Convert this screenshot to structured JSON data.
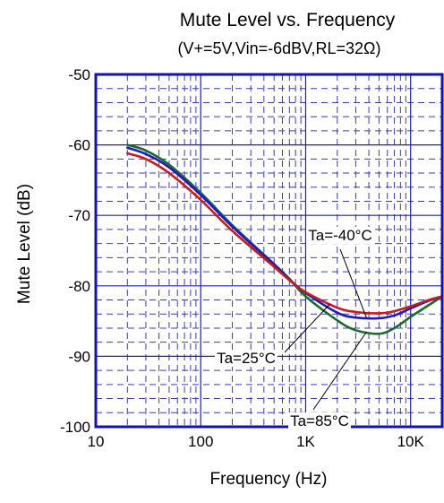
{
  "chart_data": {
    "type": "line",
    "title": "Mute Level vs. Frequency",
    "subtitle": "(V+=5V,Vin=-6dBV,RL=32Ω)",
    "xlabel": "Frequency (Hz)",
    "ylabel": "Mute Level (dB)",
    "x_scale": "log",
    "xlim": [
      10,
      20000
    ],
    "ylim": [
      -100,
      -50
    ],
    "grid": true,
    "x_ticks": [
      {
        "value": 10,
        "label": "10"
      },
      {
        "value": 100,
        "label": "100"
      },
      {
        "value": 1000,
        "label": "1K"
      },
      {
        "value": 10000,
        "label": "10K"
      }
    ],
    "y_ticks": [
      {
        "value": -50,
        "label": "-50"
      },
      {
        "value": -60,
        "label": "-60"
      },
      {
        "value": -70,
        "label": "-70"
      },
      {
        "value": -80,
        "label": "-80"
      },
      {
        "value": -90,
        "label": "-90"
      },
      {
        "value": -100,
        "label": "-100"
      }
    ],
    "x": [
      20,
      30,
      50,
      100,
      200,
      500,
      700,
      1000,
      2000,
      3000,
      5000,
      7000,
      10000,
      15000,
      20000
    ],
    "series": [
      {
        "name": "Ta=85°C",
        "color": "#1a6b2a",
        "values": [
          -60.0,
          -60.8,
          -62.8,
          -66.8,
          -71.4,
          -76.9,
          -79.0,
          -81.5,
          -84.9,
          -86.3,
          -86.8,
          -86.0,
          -84.4,
          -82.7,
          -81.5
        ]
      },
      {
        "name": "Ta=-40°C",
        "color": "#1a1ac8",
        "values": [
          -60.4,
          -61.3,
          -63.2,
          -67.1,
          -71.6,
          -77.0,
          -79.1,
          -81.0,
          -83.8,
          -84.5,
          -84.6,
          -84.2,
          -83.2,
          -82.1,
          -81.5
        ]
      },
      {
        "name": "Ta=25°C",
        "color": "#cc1a1a",
        "values": [
          -61.2,
          -62.0,
          -64.0,
          -67.8,
          -72.2,
          -77.3,
          -79.2,
          -80.9,
          -83.1,
          -83.7,
          -83.9,
          -83.6,
          -82.9,
          -82.0,
          -81.5
        ]
      }
    ],
    "annotations": [
      {
        "text": "Ta=-40°C",
        "series": "Ta=-40°C"
      },
      {
        "text": "Ta=25°C",
        "series": "Ta=25°C"
      },
      {
        "text": "Ta=85°C",
        "series": "Ta=85°C"
      }
    ]
  }
}
